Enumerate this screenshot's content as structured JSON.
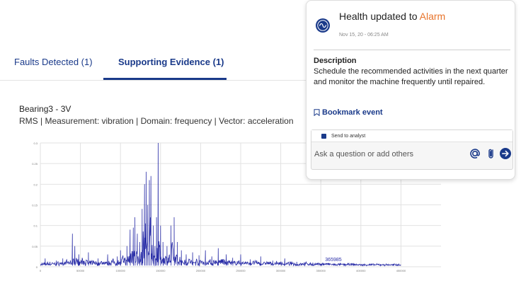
{
  "tabs": [
    {
      "label": "Faults Detected (1)"
    },
    {
      "label": "Supporting Evidence (1)"
    }
  ],
  "chart_header": {
    "title": "Bearing3 - 3V",
    "subtitle": "RMS | Measurement: vibration | Domain: frequency | Vector: acceleration"
  },
  "chart_data": {
    "type": "line",
    "xlim": [
      0,
      500000
    ],
    "ylim": [
      0,
      0.3
    ],
    "x_ticks": [
      "0",
      "50000",
      "100000",
      "150000",
      "200000",
      "250000",
      "300000",
      "350000",
      "400000",
      "450000"
    ],
    "y_ticks": [
      "0",
      "0.05",
      "0.1",
      "0.15",
      "0.2",
      "0.25",
      "0.3"
    ],
    "annotation": "365985",
    "annotation_x": 365985,
    "grid": true,
    "line_color": "#2b2fa8",
    "peaks": [
      [
        2000,
        0.01
      ],
      [
        6000,
        0.02
      ],
      [
        12000,
        0.012
      ],
      [
        20000,
        0.015
      ],
      [
        28000,
        0.02
      ],
      [
        40000,
        0.08
      ],
      [
        43000,
        0.05
      ],
      [
        48000,
        0.03
      ],
      [
        60000,
        0.035
      ],
      [
        72000,
        0.02
      ],
      [
        84000,
        0.03
      ],
      [
        96000,
        0.025
      ],
      [
        100000,
        0.04
      ],
      [
        108000,
        0.05
      ],
      [
        112000,
        0.09
      ],
      [
        116000,
        0.095
      ],
      [
        118000,
        0.12
      ],
      [
        121000,
        0.08
      ],
      [
        124000,
        0.06
      ],
      [
        127000,
        0.14
      ],
      [
        130000,
        0.2
      ],
      [
        132000,
        0.23
      ],
      [
        134000,
        0.15
      ],
      [
        136000,
        0.21
      ],
      [
        138000,
        0.22
      ],
      [
        141000,
        0.1
      ],
      [
        143000,
        0.05
      ],
      [
        145000,
        0.12
      ],
      [
        147000,
        0.3
      ],
      [
        150000,
        0.1
      ],
      [
        153000,
        0.06
      ],
      [
        158000,
        0.05
      ],
      [
        163000,
        0.1
      ],
      [
        167000,
        0.12
      ],
      [
        171000,
        0.06
      ],
      [
        176000,
        0.04
      ],
      [
        182000,
        0.03
      ],
      [
        190000,
        0.035
      ],
      [
        198000,
        0.028
      ],
      [
        206000,
        0.04
      ],
      [
        214000,
        0.025
      ],
      [
        222000,
        0.045
      ],
      [
        232000,
        0.03
      ],
      [
        240000,
        0.022
      ],
      [
        250000,
        0.03
      ],
      [
        262000,
        0.018
      ],
      [
        275000,
        0.025
      ],
      [
        290000,
        0.015
      ],
      [
        305000,
        0.02
      ],
      [
        320000,
        0.012
      ],
      [
        340000,
        0.01
      ],
      [
        365985,
        0.008
      ],
      [
        400000,
        0.005
      ],
      [
        440000,
        0.003
      ]
    ]
  },
  "card": {
    "icon": "health-wave-icon",
    "title_prefix": "Health updated to ",
    "title_status": "Alarm",
    "status_color": "#e8742b",
    "timestamp": "Nov 15, 20 - 06:25 AM",
    "description_label": "Description",
    "description_text": "Schedule the recommended activities in the next quarter and monitor the machine frequently until repaired.",
    "bookmark_label": "Bookmark event",
    "send_to_analyst_label": "Send to analyst",
    "comment_placeholder": "Ask a question or add others"
  }
}
